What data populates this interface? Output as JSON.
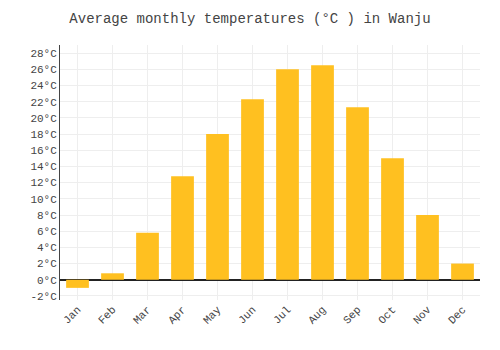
{
  "chart_data": {
    "type": "bar",
    "title": "Average monthly temperatures (°C ) in Wanju",
    "categories": [
      "Jan",
      "Feb",
      "Mar",
      "Apr",
      "May",
      "Jun",
      "Jul",
      "Aug",
      "Sep",
      "Oct",
      "Nov",
      "Dec"
    ],
    "values": [
      -1.0,
      0.8,
      5.8,
      12.8,
      18.0,
      22.3,
      26.0,
      26.5,
      21.3,
      15.0,
      8.0,
      2.0
    ],
    "color": "#FFC020",
    "ylim": [
      -2.5,
      29.0
    ],
    "yticks": [
      {
        "value": -2,
        "label": "-2°C"
      },
      {
        "value": 0,
        "label": "0°C"
      },
      {
        "value": 2,
        "label": "2°C"
      },
      {
        "value": 4,
        "label": "4°C"
      },
      {
        "value": 6,
        "label": "6°C"
      },
      {
        "value": 8,
        "label": "8°C"
      },
      {
        "value": 10,
        "label": "10°C"
      },
      {
        "value": 12,
        "label": "12°C"
      },
      {
        "value": 14,
        "label": "14°C"
      },
      {
        "value": 16,
        "label": "16°C"
      },
      {
        "value": 18,
        "label": "18°C"
      },
      {
        "value": 20,
        "label": "20°C"
      },
      {
        "value": 22,
        "label": "22°C"
      },
      {
        "value": 24,
        "label": "24°C"
      },
      {
        "value": 26,
        "label": "26°C"
      },
      {
        "value": 28,
        "label": "28°C"
      }
    ],
    "grid": true
  }
}
